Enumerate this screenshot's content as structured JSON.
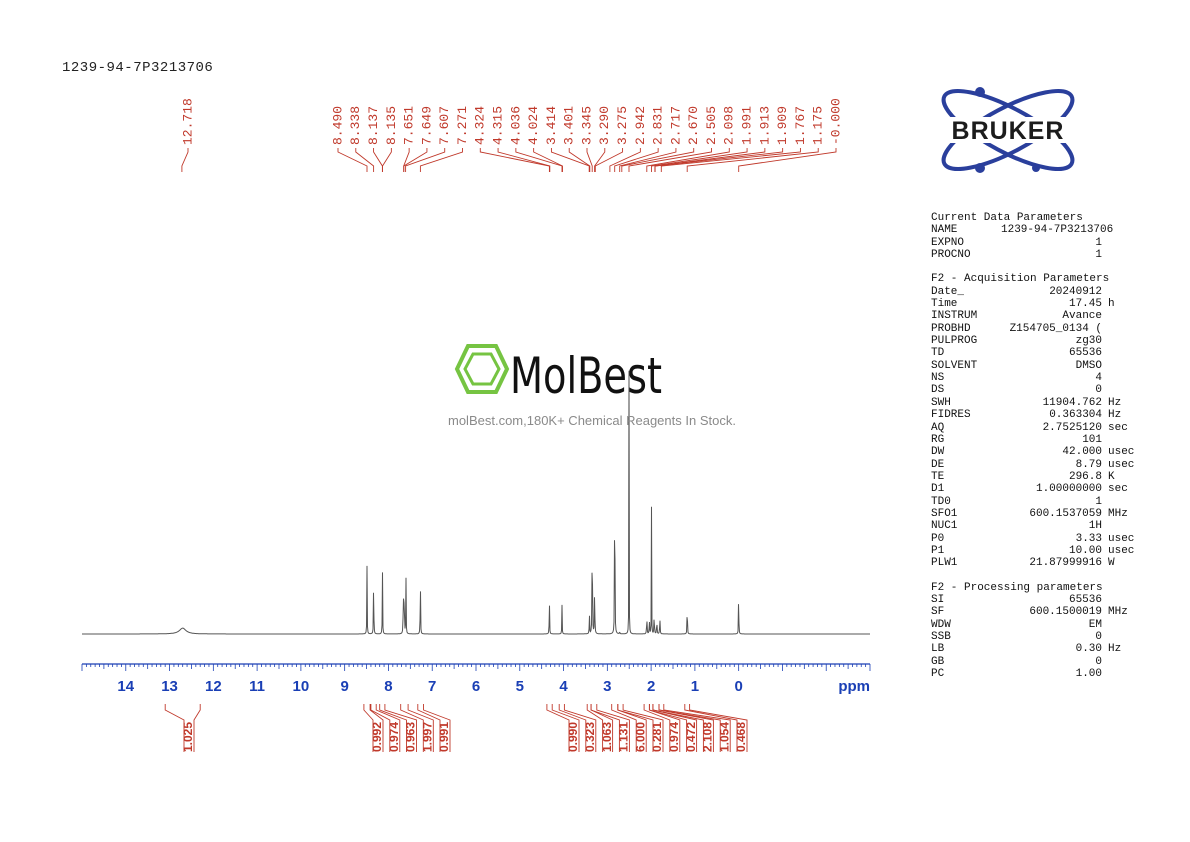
{
  "sample_title": "1239-94-7P3213706",
  "brand": {
    "logo_text": "BRUKER",
    "logo_color": "#2a3f9c",
    "watermark_logo": "MolBest",
    "watermark_tagline": "molBest.com,180K+ Chemical Reagents In Stock.",
    "watermark_green": "#76c442"
  },
  "colors": {
    "peak_label": "#c0392b",
    "axis": "#1a3fb5",
    "spectrum": "#555555"
  },
  "chart_data": {
    "type": "line",
    "xlabel": "ppm",
    "xlim": [
      15.0,
      -3.0
    ],
    "x_ticks": [
      "14",
      "13",
      "12",
      "11",
      "10",
      "9",
      "8",
      "7",
      "6",
      "5",
      "4",
      "3",
      "2",
      "1",
      "0"
    ],
    "x_tick_values": [
      14,
      13,
      12,
      11,
      10,
      9,
      8,
      7,
      6,
      5,
      4,
      3,
      2,
      1,
      0
    ],
    "peak_labels": [
      "12.718",
      "8.490",
      "8.338",
      "8.137",
      "8.135",
      "7.651",
      "7.649",
      "7.607",
      "7.271",
      "4.324",
      "4.315",
      "4.036",
      "4.024",
      "3.414",
      "3.401",
      "3.345",
      "3.290",
      "3.275",
      "2.942",
      "2.831",
      "2.717",
      "2.670",
      "2.505",
      "2.098",
      "1.991",
      "1.913",
      "1.909",
      "1.767",
      "1.175",
      "-0.000"
    ],
    "peak_positions": [
      12.718,
      8.49,
      8.338,
      8.137,
      8.135,
      7.651,
      7.649,
      7.607,
      7.271,
      4.324,
      4.315,
      4.036,
      4.024,
      3.414,
      3.401,
      3.345,
      3.29,
      3.275,
      2.942,
      2.831,
      2.717,
      2.67,
      2.505,
      2.098,
      1.991,
      1.913,
      1.909,
      1.767,
      1.175,
      0.0
    ],
    "spectrum_peaks": [
      {
        "ppm": 12.7,
        "height": 0.013,
        "width": 0.09
      },
      {
        "ppm": 8.49,
        "height": 0.15,
        "width": 0.004
      },
      {
        "ppm": 8.338,
        "height": 0.155,
        "width": 0.004
      },
      {
        "ppm": 8.137,
        "height": 0.148,
        "width": 0.004
      },
      {
        "ppm": 7.66,
        "height": 0.135,
        "width": 0.004
      },
      {
        "ppm": 7.64,
        "height": 0.14,
        "width": 0.004
      },
      {
        "ppm": 7.6,
        "height": 0.13,
        "width": 0.004
      },
      {
        "ppm": 7.271,
        "height": 0.155,
        "width": 0.004
      },
      {
        "ppm": 4.324,
        "height": 0.096,
        "width": 0.004
      },
      {
        "ppm": 4.036,
        "height": 0.065,
        "width": 0.004
      },
      {
        "ppm": 3.41,
        "height": 0.055,
        "width": 0.004
      },
      {
        "ppm": 3.345,
        "height": 0.365,
        "width": 0.004
      },
      {
        "ppm": 3.29,
        "height": 0.11,
        "width": 0.005
      },
      {
        "ppm": 2.831,
        "height": 0.85,
        "width": 0.003
      },
      {
        "ppm": 2.717,
        "height": 0.005,
        "width": 0.005
      },
      {
        "ppm": 2.505,
        "height": 0.58,
        "width": 0.003
      },
      {
        "ppm": 2.098,
        "height": 0.045,
        "width": 0.005
      },
      {
        "ppm": 2.04,
        "height": 0.035,
        "width": 0.005
      },
      {
        "ppm": 1.991,
        "height": 0.28,
        "width": 0.003
      },
      {
        "ppm": 1.93,
        "height": 0.05,
        "width": 0.005
      },
      {
        "ppm": 1.87,
        "height": 0.035,
        "width": 0.005
      },
      {
        "ppm": 1.8,
        "height": 0.04,
        "width": 0.005
      },
      {
        "ppm": 1.175,
        "height": 0.148,
        "width": 0.003
      },
      {
        "ppm": 0.0,
        "height": 0.172,
        "width": 0.003
      }
    ],
    "integrals": [
      {
        "label": "1.025",
        "from": 13.1,
        "to": 12.3,
        "ppm": 12.72
      },
      {
        "label": "0.992",
        "from": 8.56,
        "to": 8.42,
        "ppm": 8.49
      },
      {
        "label": "0.974",
        "from": 8.4,
        "to": 8.28,
        "ppm": 8.338
      },
      {
        "label": "0.963",
        "from": 8.2,
        "to": 8.08,
        "ppm": 8.137
      },
      {
        "label": "1.997",
        "from": 7.72,
        "to": 7.55,
        "ppm": 7.63
      },
      {
        "label": "0.991",
        "from": 7.33,
        "to": 7.2,
        "ppm": 7.271
      },
      {
        "label": "0.990",
        "from": 4.38,
        "to": 4.26,
        "ppm": 4.324
      },
      {
        "label": "0.323",
        "from": 4.1,
        "to": 3.98,
        "ppm": 4.03
      },
      {
        "label": "1.063",
        "from": 3.46,
        "to": 3.37,
        "ppm": 3.414
      },
      {
        "label": "1.131",
        "from": 3.37,
        "to": 3.24,
        "ppm": 3.3
      },
      {
        "label": "6.000",
        "from": 2.9,
        "to": 2.76,
        "ppm": 2.831
      },
      {
        "label": "0.281",
        "from": 2.76,
        "to": 2.64,
        "ppm": 2.7
      },
      {
        "label": "0.974",
        "from": 2.16,
        "to": 2.04,
        "ppm": 2.098
      },
      {
        "label": "0.472",
        "from": 2.04,
        "to": 1.96,
        "ppm": 1.991
      },
      {
        "label": "2.108",
        "from": 1.96,
        "to": 1.82,
        "ppm": 1.91
      },
      {
        "label": "1.054",
        "from": 1.82,
        "to": 1.71,
        "ppm": 1.767
      },
      {
        "label": "0.468",
        "from": 1.23,
        "to": 1.12,
        "ppm": 1.175
      }
    ],
    "grid": false
  },
  "parameters": [
    {
      "title": "Current Data Parameters",
      "rows": [
        {
          "name": "NAME",
          "value": "1239-94-7P3213706",
          "unit": ""
        },
        {
          "name": "EXPNO",
          "value": "1",
          "unit": ""
        },
        {
          "name": "PROCNO",
          "value": "1",
          "unit": ""
        }
      ]
    },
    {
      "title": "F2 - Acquisition Parameters",
      "rows": [
        {
          "name": "Date_",
          "value": "20240912",
          "unit": ""
        },
        {
          "name": "Time",
          "value": "17.45",
          "unit": "h"
        },
        {
          "name": "INSTRUM",
          "value": "Avance",
          "unit": ""
        },
        {
          "name": "PROBHD",
          "value": "Z154705_0134 (",
          "unit": ""
        },
        {
          "name": "PULPROG",
          "value": "zg30",
          "unit": ""
        },
        {
          "name": "TD",
          "value": "65536",
          "unit": ""
        },
        {
          "name": "SOLVENT",
          "value": "DMSO",
          "unit": ""
        },
        {
          "name": "NS",
          "value": "4",
          "unit": ""
        },
        {
          "name": "DS",
          "value": "0",
          "unit": ""
        },
        {
          "name": "SWH",
          "value": "11904.762",
          "unit": "Hz"
        },
        {
          "name": "FIDRES",
          "value": "0.363304",
          "unit": "Hz"
        },
        {
          "name": "AQ",
          "value": "2.7525120",
          "unit": "sec"
        },
        {
          "name": "RG",
          "value": "101",
          "unit": ""
        },
        {
          "name": "DW",
          "value": "42.000",
          "unit": "usec"
        },
        {
          "name": "DE",
          "value": "8.79",
          "unit": "usec"
        },
        {
          "name": "TE",
          "value": "296.8",
          "unit": "K"
        },
        {
          "name": "D1",
          "value": "1.00000000",
          "unit": "sec"
        },
        {
          "name": "TD0",
          "value": "1",
          "unit": ""
        },
        {
          "name": "SFO1",
          "value": "600.1537059",
          "unit": "MHz"
        },
        {
          "name": "NUC1",
          "value": "1H",
          "unit": ""
        },
        {
          "name": "P0",
          "value": "3.33",
          "unit": "usec"
        },
        {
          "name": "P1",
          "value": "10.00",
          "unit": "usec"
        },
        {
          "name": "PLW1",
          "value": "21.87999916",
          "unit": "W"
        }
      ]
    },
    {
      "title": "F2 - Processing parameters",
      "rows": [
        {
          "name": "SI",
          "value": "65536",
          "unit": ""
        },
        {
          "name": "SF",
          "value": "600.1500019",
          "unit": "MHz"
        },
        {
          "name": "WDW",
          "value": "EM",
          "unit": ""
        },
        {
          "name": "SSB",
          "value": "0",
          "unit": ""
        },
        {
          "name": "LB",
          "value": "0.30",
          "unit": "Hz"
        },
        {
          "name": "GB",
          "value": "0",
          "unit": ""
        },
        {
          "name": "PC",
          "value": "1.00",
          "unit": ""
        }
      ]
    }
  ]
}
